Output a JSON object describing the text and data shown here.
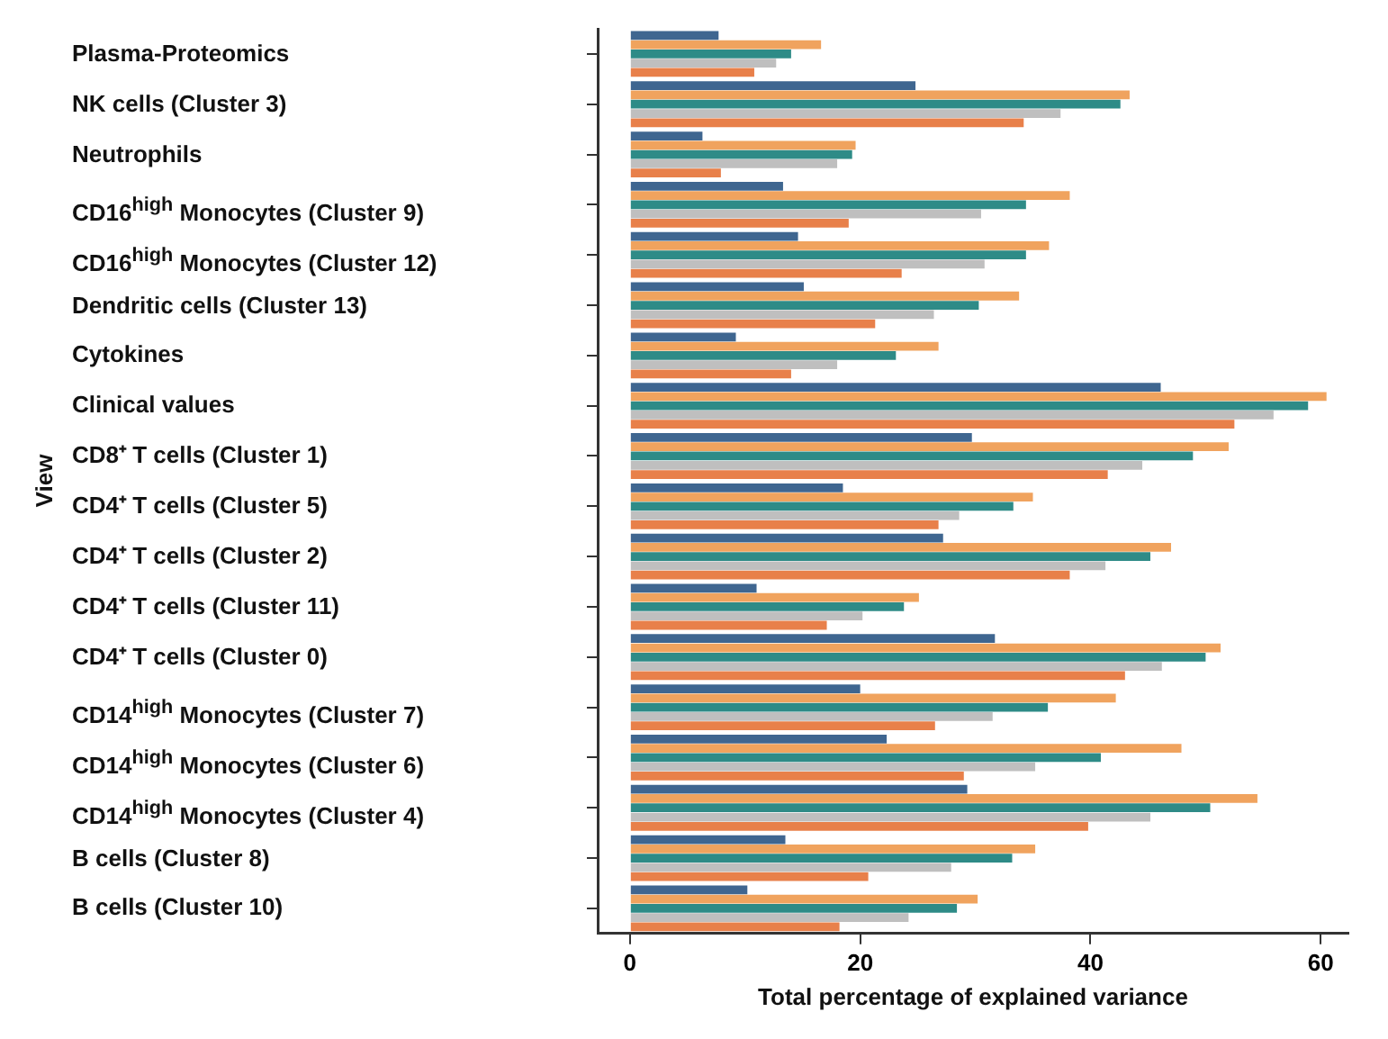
{
  "chart_data": {
    "type": "bar",
    "orientation": "horizontal",
    "xlabel": "Total percentage of explained variance",
    "ylabel": "View",
    "categories": [
      "Plasma-Proteomics",
      "NK cells (Cluster 3)",
      "Neutrophils",
      "CD16$^{high}$ Monocytes (Cluster 9)",
      "CD16$^{high}$ Monocytes (Cluster 12)",
      "Dendritic cells (Cluster 13)",
      "Cytokines",
      "Clinical values",
      "CD8⁺ T cells (Cluster 1)",
      "CD4⁺ T cells (Cluster 5)",
      "CD4⁺ T cells (Cluster 2)",
      "CD4⁺ T cells (Cluster 11)",
      "CD4⁺ T cells (Cluster 0)",
      "CD14$^{high}$ Monocytes (Cluster 7)",
      "CD14$^{high}$ Monocytes (Cluster 6)",
      "CD14$^{high}$ Monocytes (Cluster 4)",
      "B cells (Cluster 8)",
      "B cells (Cluster 10)"
    ],
    "series": [
      {
        "color": "#3f6690",
        "values": [
          7.7,
          24.8,
          6.3,
          13.3,
          14.6,
          15.1,
          9.2,
          46.1,
          29.7,
          18.5,
          27.2,
          11.0,
          31.7,
          20.0,
          22.3,
          29.3,
          13.5,
          10.2
        ]
      },
      {
        "color": "#f0a35e",
        "values": [
          16.6,
          43.4,
          19.6,
          38.2,
          36.4,
          33.8,
          26.8,
          60.5,
          52.0,
          35.0,
          47.0,
          25.1,
          51.3,
          42.2,
          47.9,
          54.5,
          35.2,
          30.2
        ]
      },
      {
        "color": "#2e8b87",
        "values": [
          14.0,
          42.6,
          19.3,
          34.4,
          34.4,
          30.3,
          23.1,
          58.9,
          48.9,
          33.3,
          45.2,
          23.8,
          50.0,
          36.3,
          40.9,
          50.4,
          33.2,
          28.4
        ]
      },
      {
        "color": "#bfbfbf",
        "values": [
          12.7,
          37.4,
          18.0,
          30.5,
          30.8,
          26.4,
          18.0,
          55.9,
          44.5,
          28.6,
          41.3,
          20.2,
          46.2,
          31.5,
          35.2,
          45.2,
          27.9,
          24.2
        ]
      },
      {
        "color": "#e8804a",
        "values": [
          10.8,
          34.2,
          7.9,
          19.0,
          23.6,
          21.3,
          14.0,
          52.5,
          41.5,
          26.8,
          38.2,
          17.1,
          43.0,
          26.5,
          29.0,
          39.8,
          20.7,
          18.2
        ]
      }
    ],
    "xlim": [
      -2.8,
      62.4
    ],
    "xticks": [
      0,
      20,
      40,
      60
    ],
    "grid": false,
    "legend": false
  }
}
